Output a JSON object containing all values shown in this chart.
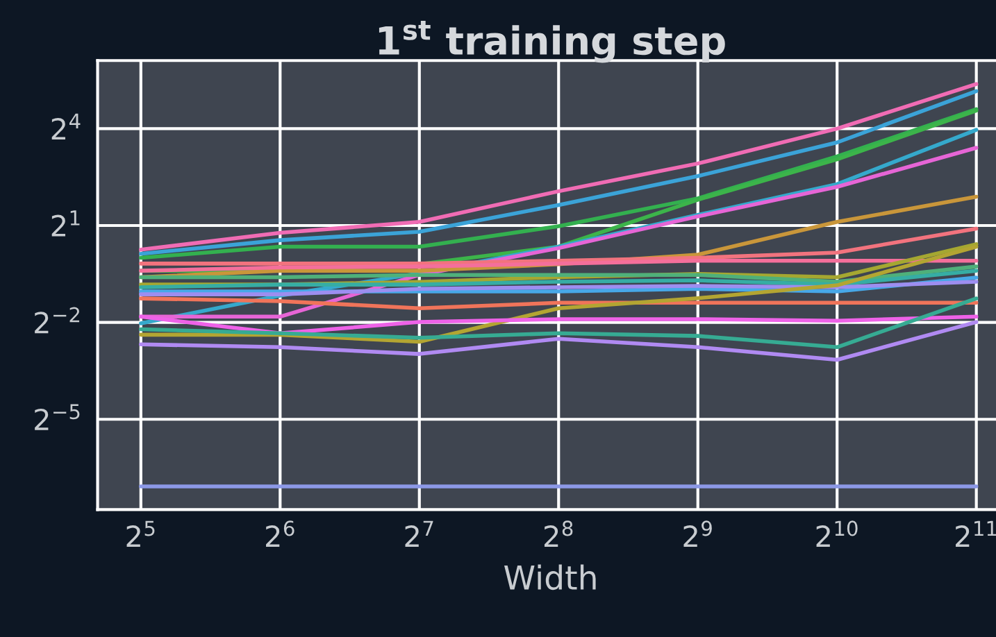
{
  "chart_data": {
    "type": "line",
    "title": "1$^{st}$ training step",
    "xlabel": "Width",
    "log": "xy",
    "grid": true,
    "marker": "none",
    "line_style": "solid",
    "x": [
      32,
      64,
      128,
      256,
      512,
      1024,
      2048
    ],
    "xlim": [
      25.8,
      2350
    ],
    "ylim": [
      0.0045,
      69
    ],
    "xticks": [
      {
        "value": 32,
        "label": "2$^{5}$"
      },
      {
        "value": 64,
        "label": "2$^{6}$"
      },
      {
        "value": 128,
        "label": "2$^{7}$"
      },
      {
        "value": 256,
        "label": "2$^{8}$"
      },
      {
        "value": 512,
        "label": "2$^{9}$"
      },
      {
        "value": 1024,
        "label": "2$^{10}$"
      },
      {
        "value": 2048,
        "label": "2$^{11}$"
      }
    ],
    "yticks": [
      {
        "value": 0.03125,
        "label": "2$^{−5}$"
      },
      {
        "value": 0.25,
        "label": "2$^{−2}$"
      },
      {
        "value": 2,
        "label": "2$^{1}$"
      },
      {
        "value": 16,
        "label": "2$^{4}$"
      }
    ],
    "series": [
      {
        "color": "#f06cb4",
        "values": [
          1.19,
          1.71,
          2.16,
          4.17,
          7.57,
          16,
          41.6
        ]
      },
      {
        "color": "#3ba3d8",
        "values": [
          1.09,
          1.46,
          1.75,
          3.1,
          5.78,
          11.9,
          35.8
        ]
      },
      {
        "color": "#33b04f",
        "values": [
          1.0,
          1.27,
          1.27,
          1.97,
          3.58,
          8.8,
          24.3
        ]
      },
      {
        "color": "#3cb44a",
        "values": [
          0.758,
          0.758,
          0.871,
          1.27,
          3.48,
          8.28,
          23.6
        ]
      },
      {
        "color": "#35a9cc",
        "values": [
          0.245,
          0.444,
          0.717,
          1.27,
          2.51,
          4.86,
          15.6
        ]
      },
      {
        "color": "#e665d6",
        "values": [
          0.283,
          0.283,
          0.693,
          1.23,
          2.43,
          4.59,
          10.6
        ]
      },
      {
        "color": "#c9963a",
        "values": [
          0.66,
          0.758,
          0.758,
          0.871,
          1.07,
          2.16,
          3.71
        ]
      },
      {
        "color": "#f2737e",
        "values": [
          0.883,
          0.883,
          0.883,
          0.939,
          1.0,
          1.12,
          1.87
        ]
      },
      {
        "color": "#f46f9b",
        "values": [
          0.758,
          0.812,
          0.829,
          0.883,
          0.939,
          0.939,
          0.939
        ]
      },
      {
        "color": "#a5a731",
        "values": [
          0.563,
          0.563,
          0.595,
          0.66,
          0.707,
          0.66,
          1.34
        ]
      },
      {
        "color": "#4fb07a",
        "values": [
          0.66,
          0.66,
          0.693,
          0.693,
          0.693,
          0.599,
          0.829
        ]
      },
      {
        "color": "#36ada4",
        "values": [
          0.532,
          0.563,
          0.563,
          0.599,
          0.616,
          0.563,
          0.758
        ]
      },
      {
        "color": "#47a8e8",
        "values": [
          0.486,
          0.486,
          0.486,
          0.486,
          0.514,
          0.486,
          0.655
        ]
      },
      {
        "color": "#9d8ef0",
        "values": [
          0.457,
          0.457,
          0.514,
          0.532,
          0.547,
          0.532,
          0.599
        ]
      },
      {
        "color": "#f0745a",
        "values": [
          0.418,
          0.395,
          0.339,
          0.381,
          0.381,
          0.381,
          0.381
        ]
      },
      {
        "color": "#b3a532",
        "values": [
          0.192,
          0.192,
          0.165,
          0.339,
          0.42,
          0.555,
          1.27
        ]
      },
      {
        "color": "#ee62e8",
        "values": [
          0.283,
          0.198,
          0.252,
          0.268,
          0.268,
          0.259,
          0.283
        ]
      },
      {
        "color": "#36ab93",
        "values": [
          0.216,
          0.198,
          0.18,
          0.198,
          0.187,
          0.147,
          0.418
        ]
      },
      {
        "color": "#b08af2",
        "values": [
          0.156,
          0.147,
          0.127,
          0.176,
          0.147,
          0.112,
          0.252
        ]
      },
      {
        "color": "#8c98e6",
        "values": [
          0.0074,
          0.0074,
          0.0074,
          0.0074,
          0.0074,
          0.0074,
          0.0074
        ]
      }
    ]
  }
}
